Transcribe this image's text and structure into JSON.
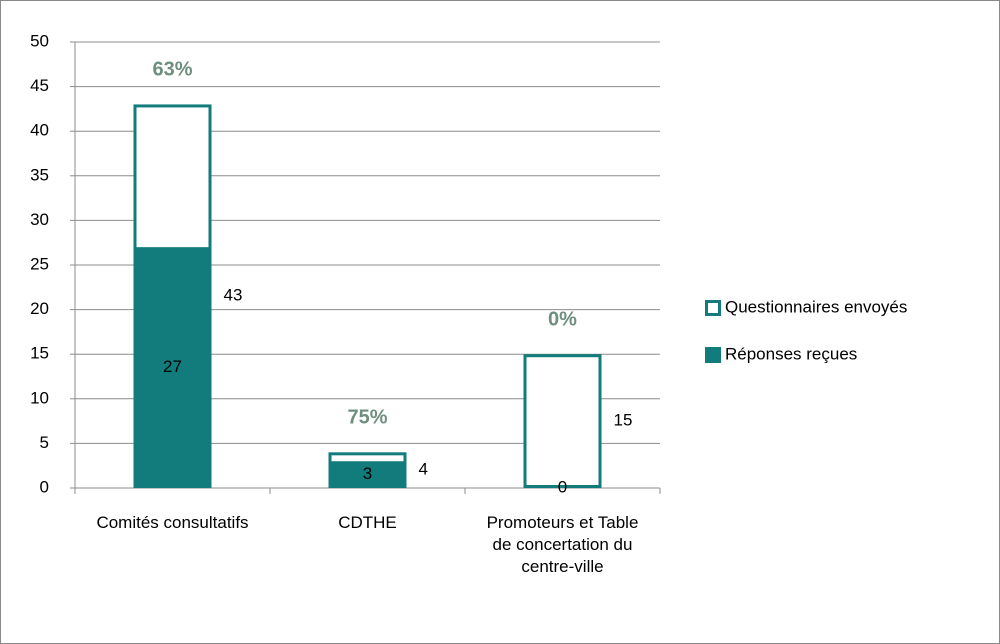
{
  "chart_data": {
    "type": "bar",
    "categories": [
      "Comités consultatifs",
      "CDTHE",
      "Promoteurs et Table de concertation du centre-ville"
    ],
    "series": [
      {
        "name": "Questionnaires envoyés",
        "color": "#127b7b",
        "style": "outline",
        "values": [
          43,
          4,
          15
        ]
      },
      {
        "name": "Réponses reçues",
        "color": "#127b7b",
        "style": "filled",
        "values": [
          27,
          3,
          0
        ]
      }
    ],
    "annotations": [
      "63%",
      "75%",
      "0%"
    ],
    "annotation_color": "#6e8f7e",
    "ylim": [
      0,
      50
    ],
    "yticks": [
      0,
      5,
      10,
      15,
      20,
      25,
      30,
      35,
      40,
      45,
      50
    ],
    "grid": true,
    "legend": "right"
  }
}
